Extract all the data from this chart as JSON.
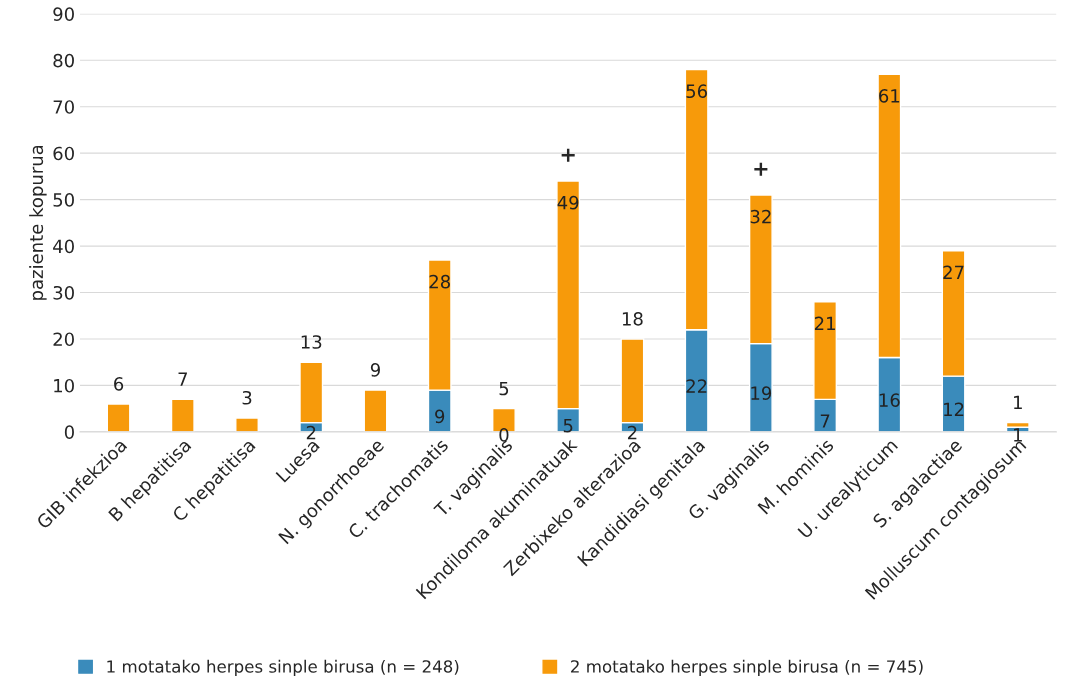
{
  "chart_data": {
    "type": "bar",
    "stacked": true,
    "ylabel": "paziente kopurua",
    "categories": [
      "GIB infekzioa",
      "B hepatitisa",
      "C hepatitisa",
      "Luesa",
      "N. gonorrhoeae",
      "C. trachomatis",
      "T. vaginalis",
      "Kondiloma akuminatuak",
      "Zerbixeko alterazioa",
      "Kandidiasi genitala",
      "G. vaginalis",
      "M. hominis",
      "U. urealyticum",
      "S. agalactiae",
      "Molluscum contagiosum"
    ],
    "series": [
      {
        "name": "1 motatako herpes sinple birusa (n = 248)",
        "color": "#3a8bbb",
        "values": [
          0,
          0,
          0,
          2,
          0,
          9,
          0,
          5,
          2,
          22,
          19,
          7,
          16,
          12,
          1
        ],
        "value_labels": [
          null,
          null,
          null,
          "2",
          null,
          "9",
          "0",
          "5",
          "2",
          "22",
          "19",
          "7",
          "16",
          "12",
          "1"
        ]
      },
      {
        "name": "2 motatako herpes sinple birusa (n = 745)",
        "color": "#f79a0a",
        "values": [
          6,
          7,
          3,
          13,
          9,
          28,
          5,
          49,
          18,
          56,
          32,
          21,
          61,
          27,
          1
        ],
        "value_labels": [
          "6",
          "7",
          "3",
          "13",
          "9",
          "28",
          "5",
          "49",
          "18",
          "56",
          "32",
          "21",
          "61",
          "27",
          "1"
        ]
      }
    ],
    "annotations": [
      {
        "text": "+",
        "x": "Kondiloma akuminatuak",
        "y": 54
      },
      {
        "text": "+",
        "x": "G. vaginalis",
        "y": 51
      }
    ],
    "ylim": [
      0,
      90
    ],
    "yticks": [
      0,
      10,
      20,
      30,
      40,
      50,
      60,
      70,
      80,
      90
    ],
    "grid": "y",
    "legend": "bottom"
  }
}
